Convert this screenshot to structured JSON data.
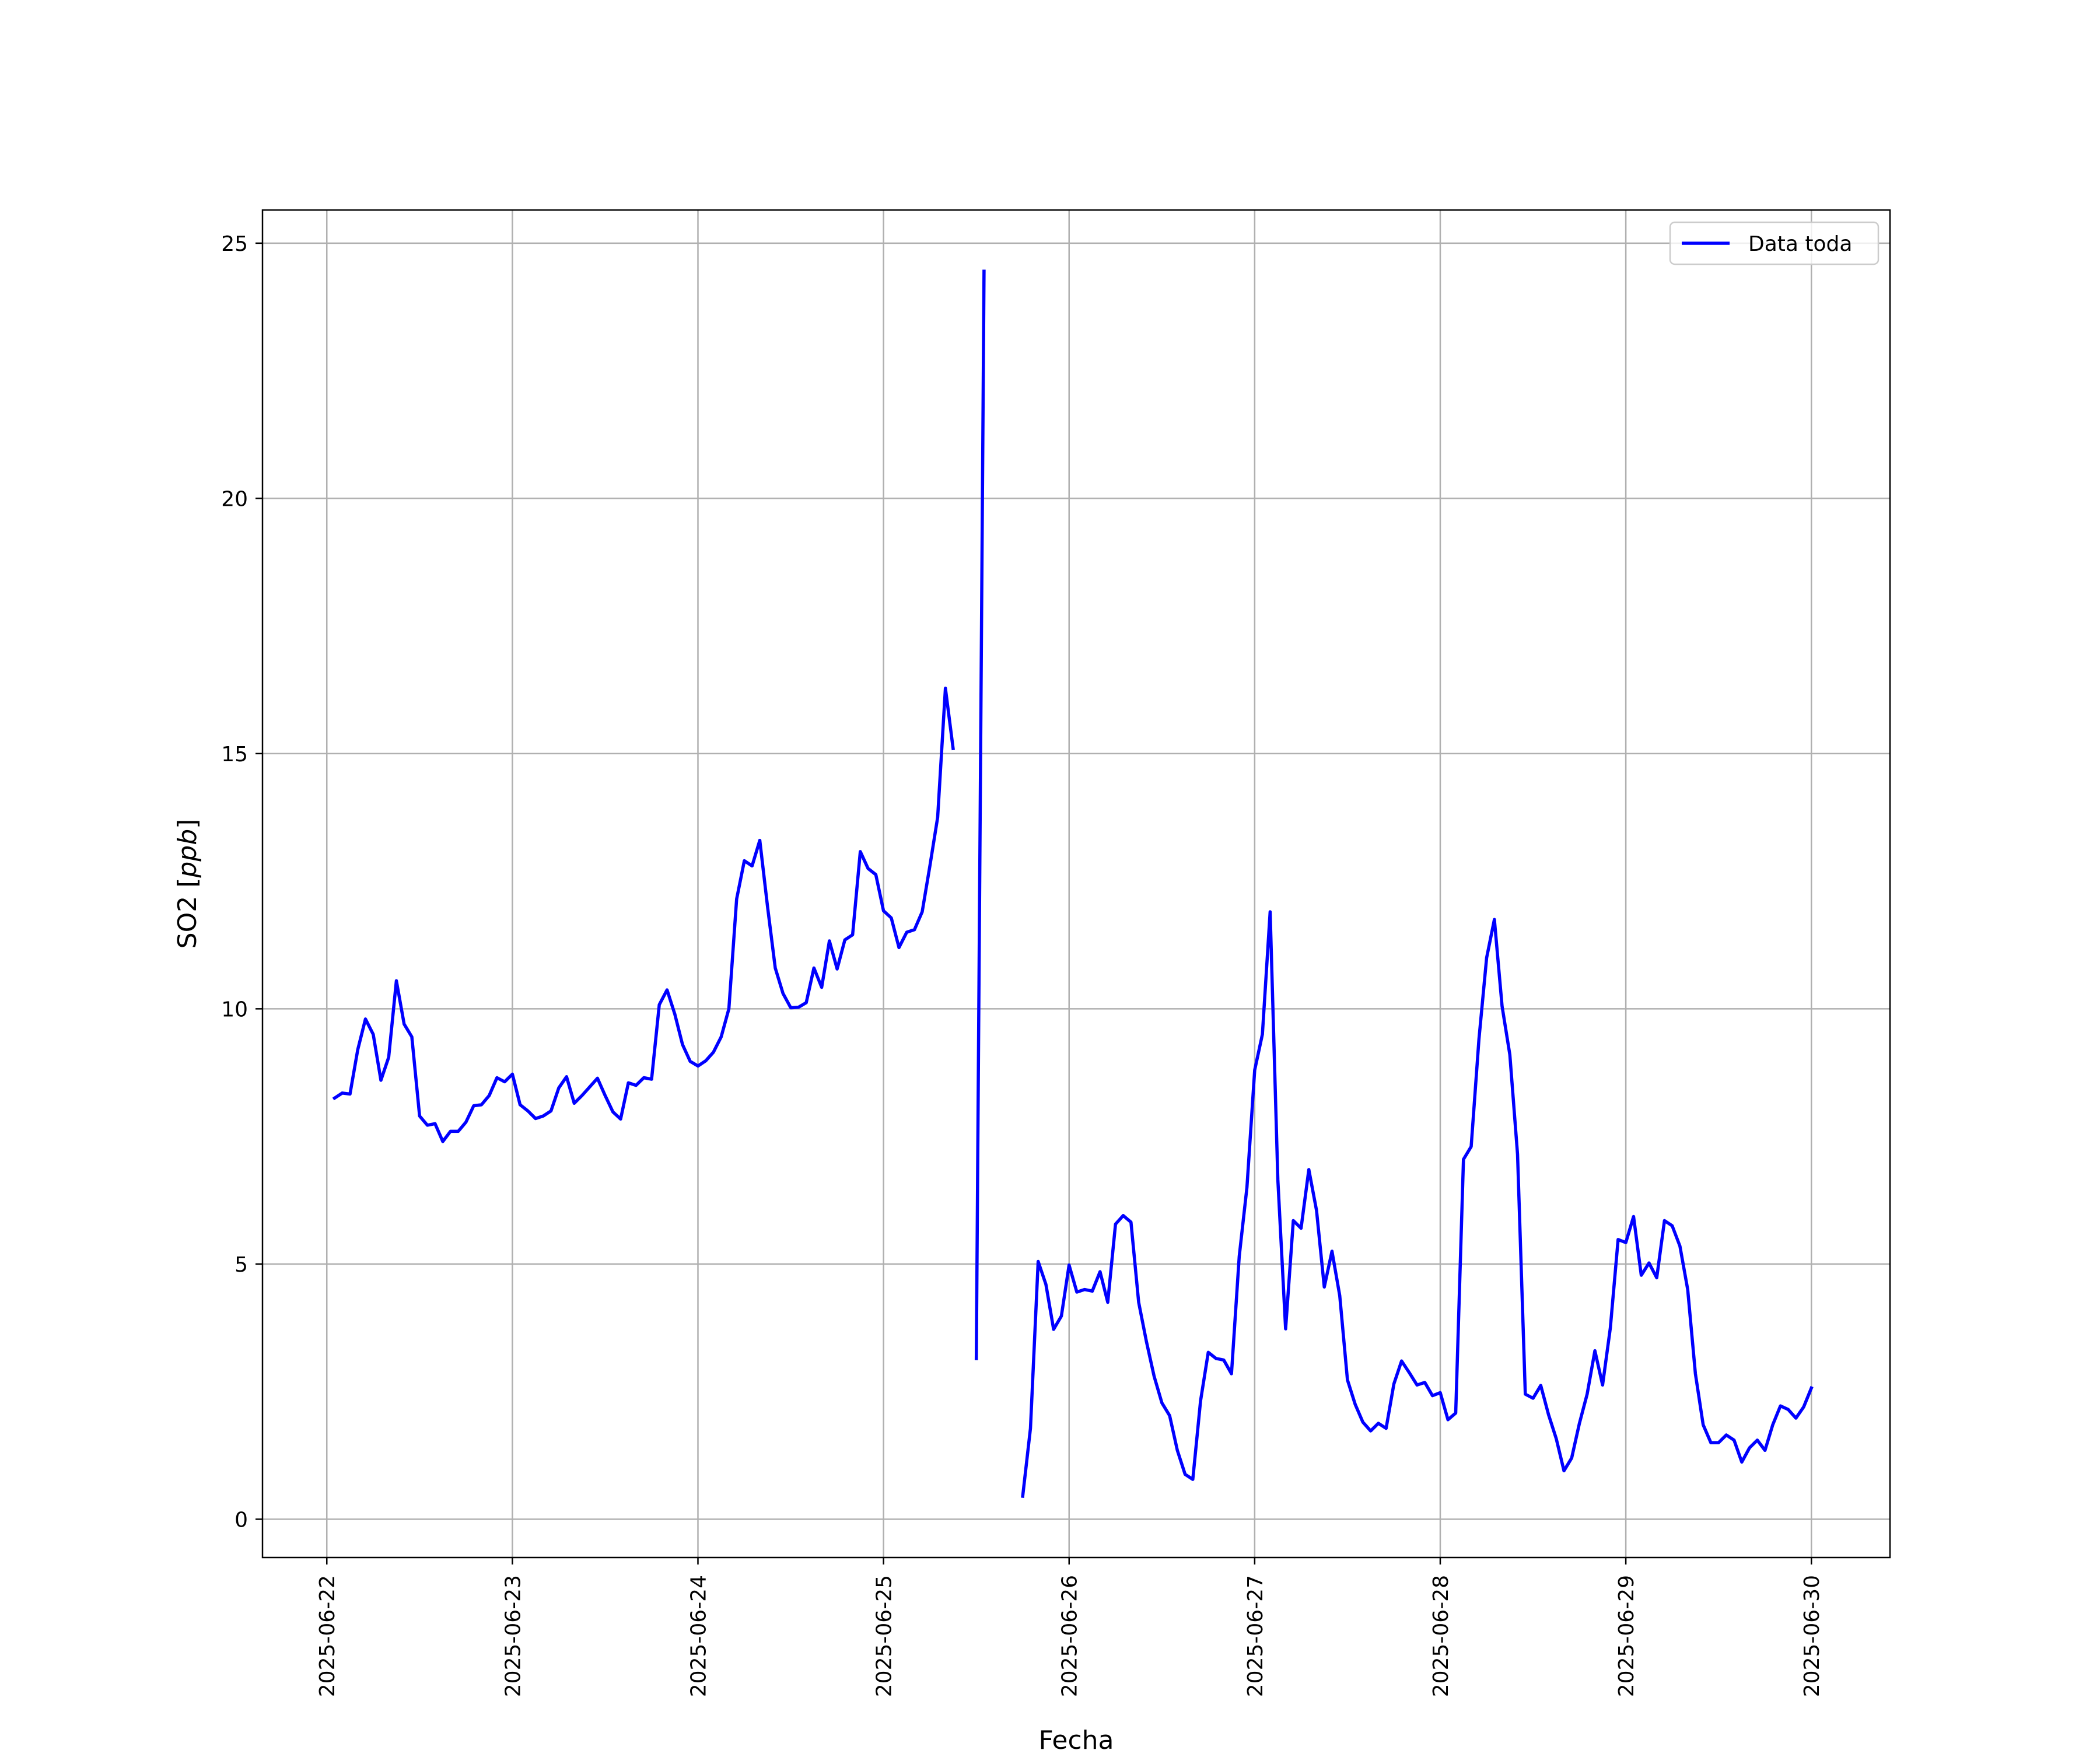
{
  "chart_data": {
    "type": "line",
    "xlabel": "Fecha",
    "ylabel_text": "SO2 [",
    "ylabel_italic": "ppb",
    "ylabel_close": "]",
    "xlim": [
      "2025-06-21T15:41",
      "2025-06-30T10:10"
    ],
    "ylim": [
      -0.75,
      25.65
    ],
    "x_ticks": [
      "2025-06-22",
      "2025-06-23",
      "2025-06-24",
      "2025-06-25",
      "2025-06-26",
      "2025-06-27",
      "2025-06-28",
      "2025-06-29",
      "2025-06-30"
    ],
    "y_ticks": [
      0,
      5,
      10,
      15,
      20,
      25
    ],
    "grid": true,
    "legend_position": "upper right",
    "series": [
      {
        "name": "Data toda",
        "color": "#0000ff",
        "points": [
          [
            "2025-06-22T01:00",
            8.25
          ],
          [
            "2025-06-22T02:00",
            8.35
          ],
          [
            "2025-06-22T03:00",
            8.33
          ],
          [
            "2025-06-22T04:00",
            9.2
          ],
          [
            "2025-06-22T05:00",
            9.8
          ],
          [
            "2025-06-22T06:00",
            9.5
          ],
          [
            "2025-06-22T07:00",
            8.6
          ],
          [
            "2025-06-22T08:00",
            9.05
          ],
          [
            "2025-06-22T09:00",
            10.55
          ],
          [
            "2025-06-22T10:00",
            9.7
          ],
          [
            "2025-06-22T11:00",
            9.45
          ],
          [
            "2025-06-22T12:00",
            7.9
          ],
          [
            "2025-06-22T13:00",
            7.72
          ],
          [
            "2025-06-22T14:00",
            7.75
          ],
          [
            "2025-06-22T15:00",
            7.4
          ],
          [
            "2025-06-22T16:00",
            7.6
          ],
          [
            "2025-06-22T17:00",
            7.6
          ],
          [
            "2025-06-22T18:00",
            7.78
          ],
          [
            "2025-06-22T19:00",
            8.1
          ],
          [
            "2025-06-22T20:00",
            8.12
          ],
          [
            "2025-06-22T21:00",
            8.3
          ],
          [
            "2025-06-22T22:00",
            8.65
          ],
          [
            "2025-06-22T23:00",
            8.57
          ],
          [
            "2025-06-23T00:00",
            8.72
          ],
          [
            "2025-06-23T01:00",
            8.12
          ],
          [
            "2025-06-23T02:00",
            8.0
          ],
          [
            "2025-06-23T03:00",
            7.85
          ],
          [
            "2025-06-23T04:00",
            7.9
          ],
          [
            "2025-06-23T05:00",
            8.0
          ],
          [
            "2025-06-23T06:00",
            8.45
          ],
          [
            "2025-06-23T07:00",
            8.67
          ],
          [
            "2025-06-23T08:00",
            8.15
          ],
          [
            "2025-06-23T09:00",
            8.3
          ],
          [
            "2025-06-23T10:00",
            8.47
          ],
          [
            "2025-06-23T11:00",
            8.64
          ],
          [
            "2025-06-23T12:00",
            8.3
          ],
          [
            "2025-06-23T13:00",
            7.98
          ],
          [
            "2025-06-23T14:00",
            7.84
          ],
          [
            "2025-06-23T15:00",
            8.55
          ],
          [
            "2025-06-23T16:00",
            8.5
          ],
          [
            "2025-06-23T17:00",
            8.65
          ],
          [
            "2025-06-23T18:00",
            8.62
          ],
          [
            "2025-06-23T19:00",
            10.08
          ],
          [
            "2025-06-23T20:00",
            10.37
          ],
          [
            "2025-06-23T21:00",
            9.9
          ],
          [
            "2025-06-23T22:00",
            9.3
          ],
          [
            "2025-06-23T23:00",
            8.97
          ],
          [
            "2025-06-24T00:00",
            8.88
          ],
          [
            "2025-06-24T01:00",
            8.98
          ],
          [
            "2025-06-24T02:00",
            9.15
          ],
          [
            "2025-06-24T03:00",
            9.45
          ],
          [
            "2025-06-24T04:00",
            10.0
          ],
          [
            "2025-06-24T05:00",
            12.15
          ],
          [
            "2025-06-24T06:00",
            12.9
          ],
          [
            "2025-06-24T07:00",
            12.8
          ],
          [
            "2025-06-24T08:00",
            13.3
          ],
          [
            "2025-06-24T09:00",
            12.0
          ],
          [
            "2025-06-24T10:00",
            10.8
          ],
          [
            "2025-06-24T11:00",
            10.3
          ],
          [
            "2025-06-24T12:00",
            10.02
          ],
          [
            "2025-06-24T13:00",
            10.03
          ],
          [
            "2025-06-24T14:00",
            10.12
          ],
          [
            "2025-06-24T15:00",
            10.8
          ],
          [
            "2025-06-24T16:00",
            10.42
          ],
          [
            "2025-06-24T17:00",
            11.33
          ],
          [
            "2025-06-24T18:00",
            10.78
          ],
          [
            "2025-06-24T19:00",
            11.35
          ],
          [
            "2025-06-24T20:00",
            11.45
          ],
          [
            "2025-06-24T21:00",
            13.08
          ],
          [
            "2025-06-24T22:00",
            12.75
          ],
          [
            "2025-06-24T23:00",
            12.63
          ],
          [
            "2025-06-25T00:00",
            11.92
          ],
          [
            "2025-06-25T01:00",
            11.78
          ],
          [
            "2025-06-25T02:00",
            11.2
          ],
          [
            "2025-06-25T03:00",
            11.5
          ],
          [
            "2025-06-25T04:00",
            11.55
          ],
          [
            "2025-06-25T05:00",
            11.9
          ],
          [
            "2025-06-25T06:00",
            12.8
          ],
          [
            "2025-06-25T07:00",
            13.75
          ],
          [
            "2025-06-25T08:00",
            16.28
          ],
          [
            "2025-06-25T09:00",
            15.1
          ],
          null,
          [
            "2025-06-25T12:00",
            3.15
          ],
          [
            "2025-06-25T13:00",
            24.45
          ],
          null,
          [
            "2025-06-25T18:00",
            0.45
          ],
          [
            "2025-06-25T19:00",
            1.78
          ],
          [
            "2025-06-25T20:00",
            5.05
          ],
          [
            "2025-06-25T21:00",
            4.6
          ],
          [
            "2025-06-25T22:00",
            3.72
          ],
          [
            "2025-06-25T23:00",
            3.98
          ],
          [
            "2025-06-26T00:00",
            4.98
          ],
          [
            "2025-06-26T01:00",
            4.45
          ],
          [
            "2025-06-26T02:00",
            4.5
          ],
          [
            "2025-06-26T03:00",
            4.47
          ],
          [
            "2025-06-26T04:00",
            4.85
          ],
          [
            "2025-06-26T05:00",
            4.25
          ],
          [
            "2025-06-26T06:00",
            5.78
          ],
          [
            "2025-06-26T07:00",
            5.95
          ],
          [
            "2025-06-26T08:00",
            5.82
          ],
          [
            "2025-06-26T09:00",
            4.25
          ],
          [
            "2025-06-26T10:00",
            3.48
          ],
          [
            "2025-06-26T11:00",
            2.8
          ],
          [
            "2025-06-26T12:00",
            2.28
          ],
          [
            "2025-06-26T13:00",
            2.03
          ],
          [
            "2025-06-26T14:00",
            1.35
          ],
          [
            "2025-06-26T15:00",
            0.88
          ],
          [
            "2025-06-26T16:00",
            0.78
          ],
          [
            "2025-06-26T17:00",
            2.32
          ],
          [
            "2025-06-26T18:00",
            3.27
          ],
          [
            "2025-06-26T19:00",
            3.15
          ],
          [
            "2025-06-26T20:00",
            3.12
          ],
          [
            "2025-06-26T21:00",
            2.85
          ],
          [
            "2025-06-26T22:00",
            5.15
          ],
          [
            "2025-06-26T23:00",
            6.5
          ],
          [
            "2025-06-27T00:00",
            8.8
          ],
          [
            "2025-06-27T01:00",
            9.5
          ],
          [
            "2025-06-27T02:00",
            11.9
          ],
          [
            "2025-06-27T03:00",
            6.65
          ],
          [
            "2025-06-27T04:00",
            3.73
          ],
          [
            "2025-06-27T05:00",
            5.85
          ],
          [
            "2025-06-27T06:00",
            5.7
          ],
          [
            "2025-06-27T07:00",
            6.85
          ],
          [
            "2025-06-27T08:00",
            6.05
          ],
          [
            "2025-06-27T09:00",
            4.55
          ],
          [
            "2025-06-27T10:00",
            5.25
          ],
          [
            "2025-06-27T11:00",
            4.38
          ],
          [
            "2025-06-27T12:00",
            2.73
          ],
          [
            "2025-06-27T13:00",
            2.25
          ],
          [
            "2025-06-27T14:00",
            1.9
          ],
          [
            "2025-06-27T15:00",
            1.73
          ],
          [
            "2025-06-27T16:00",
            1.88
          ],
          [
            "2025-06-27T17:00",
            1.78
          ],
          [
            "2025-06-27T18:00",
            2.65
          ],
          [
            "2025-06-27T19:00",
            3.1
          ],
          [
            "2025-06-27T20:00",
            2.87
          ],
          [
            "2025-06-27T21:00",
            2.63
          ],
          [
            "2025-06-27T22:00",
            2.68
          ],
          [
            "2025-06-27T23:00",
            2.42
          ],
          [
            "2025-06-28T00:00",
            2.48
          ],
          [
            "2025-06-28T01:00",
            1.95
          ],
          [
            "2025-06-28T02:00",
            2.08
          ],
          [
            "2025-06-28T03:00",
            7.05
          ],
          [
            "2025-06-28T04:00",
            7.3
          ],
          [
            "2025-06-28T05:00",
            9.4
          ],
          [
            "2025-06-28T06:00",
            11.0
          ],
          [
            "2025-06-28T07:00",
            11.75
          ],
          [
            "2025-06-28T08:00",
            10.05
          ],
          [
            "2025-06-28T09:00",
            9.1
          ],
          [
            "2025-06-28T10:00",
            7.15
          ],
          [
            "2025-06-28T11:00",
            2.45
          ],
          [
            "2025-06-28T12:00",
            2.37
          ],
          [
            "2025-06-28T13:00",
            2.62
          ],
          [
            "2025-06-28T14:00",
            2.05
          ],
          [
            "2025-06-28T15:00",
            1.58
          ],
          [
            "2025-06-28T16:00",
            0.95
          ],
          [
            "2025-06-28T17:00",
            1.2
          ],
          [
            "2025-06-28T18:00",
            1.88
          ],
          [
            "2025-06-28T19:00",
            2.45
          ],
          [
            "2025-06-28T20:00",
            3.3
          ],
          [
            "2025-06-28T21:00",
            2.63
          ],
          [
            "2025-06-28T22:00",
            3.75
          ],
          [
            "2025-06-28T23:00",
            5.48
          ],
          [
            "2025-06-29T00:00",
            5.42
          ],
          [
            "2025-06-29T01:00",
            5.93
          ],
          [
            "2025-06-29T02:00",
            4.78
          ],
          [
            "2025-06-29T03:00",
            5.02
          ],
          [
            "2025-06-29T04:00",
            4.73
          ],
          [
            "2025-06-29T05:00",
            5.85
          ],
          [
            "2025-06-29T06:00",
            5.75
          ],
          [
            "2025-06-29T07:00",
            5.35
          ],
          [
            "2025-06-29T08:00",
            4.5
          ],
          [
            "2025-06-29T09:00",
            2.85
          ],
          [
            "2025-06-29T10:00",
            1.85
          ],
          [
            "2025-06-29T11:00",
            1.5
          ],
          [
            "2025-06-29T12:00",
            1.5
          ],
          [
            "2025-06-29T13:00",
            1.65
          ],
          [
            "2025-06-29T14:00",
            1.55
          ],
          [
            "2025-06-29T15:00",
            1.12
          ],
          [
            "2025-06-29T16:00",
            1.4
          ],
          [
            "2025-06-29T17:00",
            1.55
          ],
          [
            "2025-06-29T18:00",
            1.35
          ],
          [
            "2025-06-29T19:00",
            1.85
          ],
          [
            "2025-06-29T20:00",
            2.22
          ],
          [
            "2025-06-29T21:00",
            2.15
          ],
          [
            "2025-06-29T22:00",
            1.98
          ],
          [
            "2025-06-29T23:00",
            2.2
          ],
          [
            "2025-06-30T00:00",
            2.57
          ]
        ]
      }
    ]
  }
}
